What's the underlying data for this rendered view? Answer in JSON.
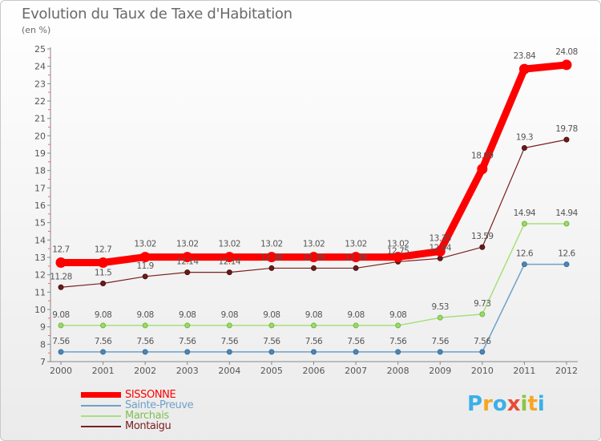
{
  "title": "Evolution du Taux de Taxe d'Habitation",
  "subtitle": "(en %)",
  "logo": {
    "text": "Proxiti",
    "letters": [
      "P",
      "r",
      "o",
      "x",
      "i",
      "t",
      "i"
    ],
    "colors": [
      "#3ab0e8",
      "#f5a623",
      "#3ab0e8",
      "#e94b35",
      "#8cc63f",
      "#f5a623",
      "#3ab0e8"
    ]
  },
  "chart_data": {
    "type": "line",
    "title": "Evolution du Taux de Taxe d'Habitation",
    "ylabel": "(en %)",
    "xlabel": "",
    "ylim": [
      7,
      25
    ],
    "yticks": [
      7,
      8,
      9,
      10,
      11,
      12,
      13,
      14,
      15,
      16,
      17,
      18,
      19,
      20,
      21,
      22,
      23,
      24,
      25
    ],
    "categories": [
      "2000",
      "2001",
      "2002",
      "2003",
      "2004",
      "2005",
      "2006",
      "2007",
      "2008",
      "2009",
      "2010",
      "2011",
      "2012"
    ],
    "series": [
      {
        "name": "SISSONNE",
        "color": "#ff0000",
        "values": [
          12.7,
          12.7,
          13.02,
          13.02,
          13.02,
          13.02,
          13.02,
          13.02,
          13.02,
          13.35,
          18.09,
          23.84,
          24.08
        ],
        "labels": [
          "12.7",
          "12.7",
          "13.02",
          "13.02",
          "13.02",
          "13.02",
          "13.02",
          "13.02",
          "13.02",
          "13.35",
          "18.09",
          "23.84",
          "24.08"
        ]
      },
      {
        "name": "Sainte-Preuve",
        "color": "#6fa1c8",
        "values": [
          7.56,
          7.56,
          7.56,
          7.56,
          7.56,
          7.56,
          7.56,
          7.56,
          7.56,
          7.56,
          7.56,
          12.6,
          12.6
        ],
        "labels": [
          "7.56",
          "7.56",
          "7.56",
          "7.56",
          "7.56",
          "7.56",
          "7.56",
          "7.56",
          "7.56",
          "7.56",
          "7.56",
          "12.6",
          "12.6"
        ]
      },
      {
        "name": "Marchais",
        "color": "#a6e07a",
        "values": [
          9.08,
          9.08,
          9.08,
          9.08,
          9.08,
          9.08,
          9.08,
          9.08,
          9.08,
          9.53,
          9.73,
          14.94,
          14.94
        ],
        "labels": [
          "9.08",
          "9.08",
          "9.08",
          "9.08",
          "9.08",
          "9.08",
          "9.08",
          "9.08",
          "9.08",
          "9.53",
          "9.73",
          "14.94",
          "14.94"
        ]
      },
      {
        "name": "Montaigu",
        "color": "#7a2020",
        "values": [
          11.28,
          11.5,
          11.9,
          12.14,
          12.14,
          12.38,
          12.38,
          12.38,
          12.75,
          12.94,
          13.59,
          19.3,
          19.78
        ],
        "labels": [
          "11.28",
          "11.5",
          "11.9",
          "12.14",
          "12.14",
          "12.38",
          "12.38",
          "12.38",
          "12.75",
          "12.94",
          "13.59",
          "19.3",
          "19.78"
        ]
      }
    ]
  }
}
